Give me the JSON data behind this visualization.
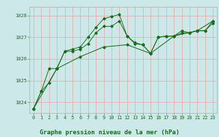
{
  "line1_x": [
    0,
    1,
    2,
    3,
    4,
    5,
    6,
    7,
    8,
    9,
    10,
    11,
    12,
    13,
    14,
    15,
    16,
    17,
    18,
    19,
    20,
    21,
    22,
    23
  ],
  "line1_y": [
    1023.7,
    1024.5,
    1024.9,
    1025.55,
    1026.35,
    1026.45,
    1026.55,
    1027.0,
    1027.45,
    1027.85,
    1027.95,
    1028.05,
    1027.05,
    1026.7,
    1026.65,
    1026.25,
    1027.0,
    1027.05,
    1027.05,
    1027.3,
    1027.2,
    1027.3,
    1027.3,
    1027.65
  ],
  "line2_x": [
    0,
    1,
    2,
    3,
    4,
    5,
    6,
    7,
    8,
    9,
    10,
    11,
    12,
    13,
    14,
    15,
    16,
    17,
    18,
    19,
    20,
    21,
    22,
    23
  ],
  "line2_y": [
    1023.7,
    1024.5,
    1025.55,
    1025.55,
    1026.35,
    1026.35,
    1026.45,
    1026.7,
    1027.2,
    1027.5,
    1027.5,
    1027.75,
    1027.05,
    1026.75,
    1026.65,
    1026.25,
    1027.0,
    1027.05,
    1027.05,
    1027.2,
    1027.2,
    1027.3,
    1027.3,
    1027.75
  ],
  "line3_x": [
    0,
    3,
    6,
    9,
    12,
    15,
    18,
    21,
    23
  ],
  "line3_y": [
    1023.7,
    1025.55,
    1026.1,
    1026.55,
    1026.65,
    1026.25,
    1027.05,
    1027.3,
    1027.75
  ],
  "line_color": "#1a6b1a",
  "marker": "D",
  "marker_size": 1.8,
  "bg_color": "#cce8e8",
  "grid_color_v": "#e8a0a0",
  "grid_color_h": "#e8a0a0",
  "xlabel": "Graphe pression niveau de la mer (hPa)",
  "ylim": [
    1023.5,
    1028.4
  ],
  "xlim": [
    -0.5,
    23.5
  ],
  "yticks": [
    1024,
    1025,
    1026,
    1027,
    1028
  ],
  "xticks": [
    0,
    1,
    2,
    3,
    4,
    5,
    6,
    7,
    8,
    9,
    10,
    11,
    12,
    13,
    14,
    15,
    16,
    17,
    18,
    19,
    20,
    21,
    22,
    23
  ],
  "xlabel_fontsize": 6.5,
  "tick_fontsize": 5.0,
  "line_width": 0.7
}
